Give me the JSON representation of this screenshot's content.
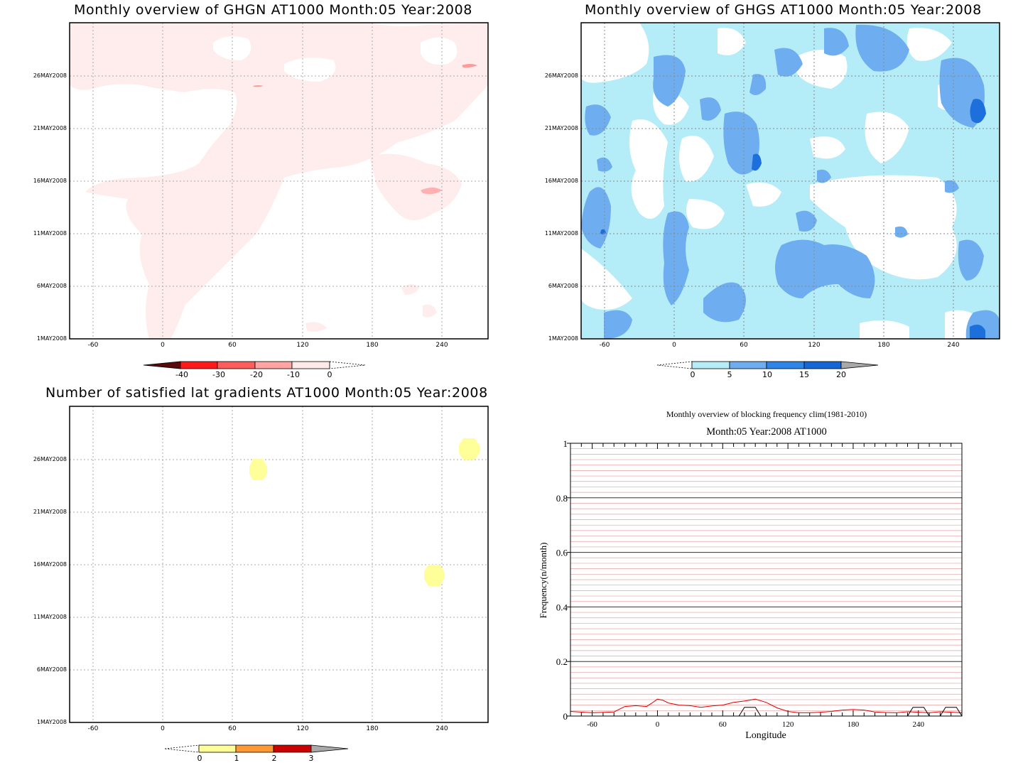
{
  "chart_data": [
    {
      "type": "heatmap",
      "title": "Monthly overview of GHGN AT1000 Month:05 Year:2008",
      "x_ticks": [
        "-60",
        "0",
        "60",
        "120",
        "180",
        "240"
      ],
      "y_ticks": [
        "1MAY2008",
        "6MAY2008",
        "11MAY2008",
        "16MAY2008",
        "21MAY2008",
        "26MAY2008"
      ],
      "colorbar": {
        "labels": [
          "-40",
          "-30",
          "-20",
          "-10",
          "0"
        ],
        "colors": [
          "#5a0a0a",
          "#ff1a1a",
          "#ff5c5c",
          "#ffa3a3",
          "#ffeaea"
        ]
      },
      "colors": {
        "shade": "#ffeceb",
        "dark": "#ffa3a3"
      },
      "grid": true
    },
    {
      "type": "heatmap",
      "title": "Monthly overview of GHGS AT1000 Month:05 Year:2008",
      "x_ticks": [
        "-60",
        "0",
        "60",
        "120",
        "180",
        "240"
      ],
      "y_ticks": [
        "1MAY2008",
        "6MAY2008",
        "11MAY2008",
        "16MAY2008",
        "21MAY2008",
        "26MAY2008"
      ],
      "colorbar": {
        "labels": [
          "0",
          "5",
          "10",
          "15",
          "20"
        ],
        "colors": [
          "#b4ecf7",
          "#6eaef0",
          "#2e85e8",
          "#1566d6",
          "#a9a9a9"
        ]
      },
      "colors": {
        "light": "#b4ecf7",
        "mid": "#6eaef0",
        "deep": "#1d6fdc"
      },
      "grid": true
    },
    {
      "type": "heatmap",
      "title": "Number of satisfied lat gradients AT1000 Month:05 Year:2008",
      "x_ticks": [
        "-60",
        "0",
        "60",
        "120",
        "180",
        "240"
      ],
      "y_ticks": [
        "1MAY2008",
        "6MAY2008",
        "11MAY2008",
        "16MAY2008",
        "21MAY2008",
        "26MAY2008"
      ],
      "colorbar": {
        "labels": [
          "0",
          "1",
          "2",
          "3"
        ],
        "colors": [
          "#ffff99",
          "#ff9933",
          "#cc0000",
          "#a9a9a9"
        ]
      },
      "colors": {
        "blob": "#ffff99"
      },
      "grid": true
    },
    {
      "type": "line",
      "title": "Monthly overview of blocking frequency clim(1981-2010)",
      "subtitle": "Month:05 Year:2008  AT1000",
      "xlabel": "Longitude",
      "ylabel": "Frequency(n/month)",
      "x_ticks": [
        "-60",
        "0",
        "60",
        "120",
        "180",
        "240"
      ],
      "y_ticks": [
        "0",
        "0.2",
        "0.4",
        "0.6",
        "0.8",
        "1"
      ],
      "xlim": [
        -80,
        280
      ],
      "ylim": [
        0,
        1
      ],
      "series": [
        {
          "color": "#dd0000",
          "x": [
            -80,
            -60,
            -40,
            -30,
            -20,
            -10,
            -5,
            0,
            5,
            10,
            20,
            30,
            40,
            50,
            60,
            70,
            80,
            90,
            100,
            110,
            120,
            130,
            140,
            150,
            160,
            170,
            180,
            190,
            200,
            210,
            220,
            230,
            240,
            250,
            260,
            270,
            280
          ],
          "values": [
            0.017,
            0.012,
            0.015,
            0.035,
            0.038,
            0.035,
            0.048,
            0.062,
            0.058,
            0.048,
            0.04,
            0.038,
            0.032,
            0.037,
            0.04,
            0.05,
            0.055,
            0.062,
            0.05,
            0.03,
            0.017,
            0.012,
            0.012,
            0.014,
            0.017,
            0.022,
            0.024,
            0.022,
            0.015,
            0.013,
            0.012,
            0.016,
            0.014,
            0.012,
            0.016,
            0.014,
            0.012
          ]
        },
        {
          "color": "#000000",
          "x": [
            -80,
            75,
            80,
            90,
            95,
            230,
            235,
            245,
            250,
            260,
            265,
            275,
            280
          ],
          "values": [
            0,
            0,
            0.032,
            0.032,
            0,
            0,
            0.032,
            0.032,
            0,
            0,
            0.032,
            0.032,
            0
          ]
        }
      ],
      "grid": true
    }
  ]
}
